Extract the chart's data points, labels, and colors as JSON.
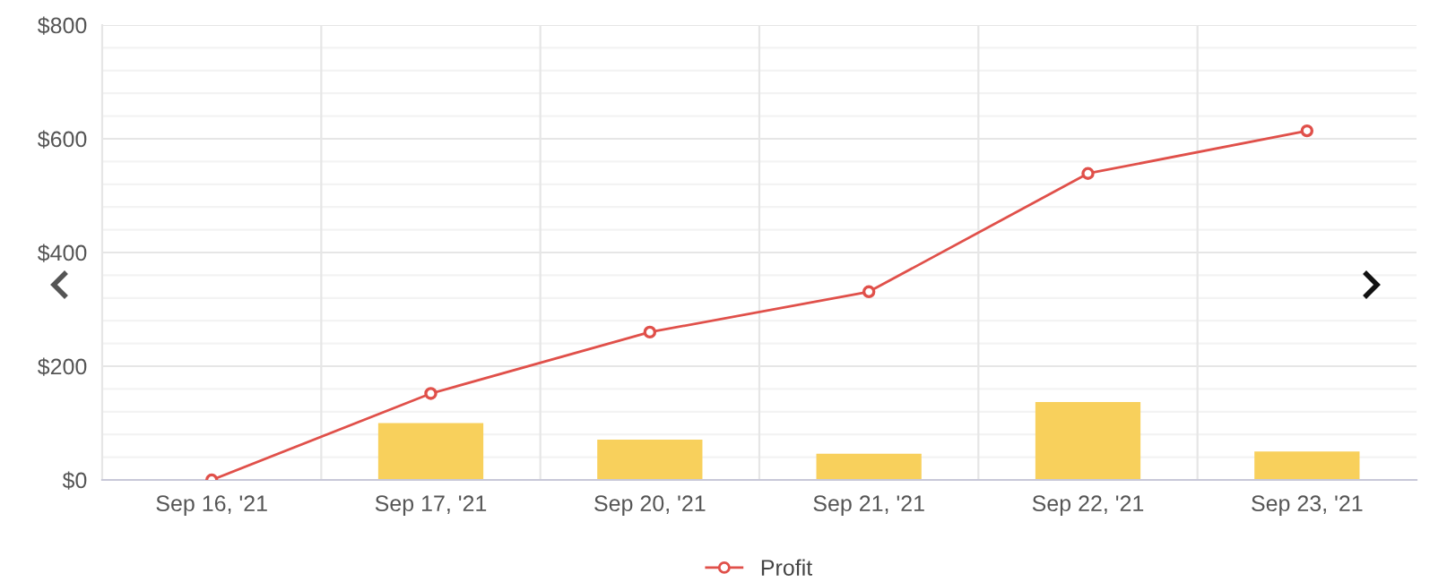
{
  "chart_data": {
    "type": "bar",
    "categories": [
      "Sep 16, '21",
      "Sep 17, '21",
      "Sep 20, '21",
      "Sep 21, '21",
      "Sep 22, '21",
      "Sep 23, '21"
    ],
    "series": [
      {
        "color": "#f8d05c",
        "values": [
          null,
          100,
          71,
          46,
          137,
          50
        ]
      },
      {
        "type": "line",
        "name": "Profit",
        "color": "#e0504a",
        "values": [
          0,
          152,
          260,
          331,
          539,
          614
        ],
        "marker": "circle"
      }
    ],
    "ylim": [
      0,
      800
    ],
    "yticks": [
      {
        "value": 0,
        "label": "$0"
      },
      {
        "value": 40,
        "label": null
      },
      {
        "value": 80,
        "label": null
      },
      {
        "value": 120,
        "label": null
      },
      {
        "value": 160,
        "label": null
      },
      {
        "value": 200,
        "label": "$200"
      },
      {
        "value": 240,
        "label": null
      },
      {
        "value": 280,
        "label": null
      },
      {
        "value": 320,
        "label": null
      },
      {
        "value": 360,
        "label": null
      },
      {
        "value": 400,
        "label": "$400"
      },
      {
        "value": 440,
        "label": null
      },
      {
        "value": 480,
        "label": null
      },
      {
        "value": 520,
        "label": null
      },
      {
        "value": 560,
        "label": null
      },
      {
        "value": 600,
        "label": "$600"
      },
      {
        "value": 640,
        "label": null
      },
      {
        "value": 680,
        "label": null
      },
      {
        "value": 720,
        "label": null
      },
      {
        "value": 760,
        "label": null
      },
      {
        "value": 800,
        "label": "$800"
      }
    ],
    "grid": true,
    "legend": "bottom"
  }
}
